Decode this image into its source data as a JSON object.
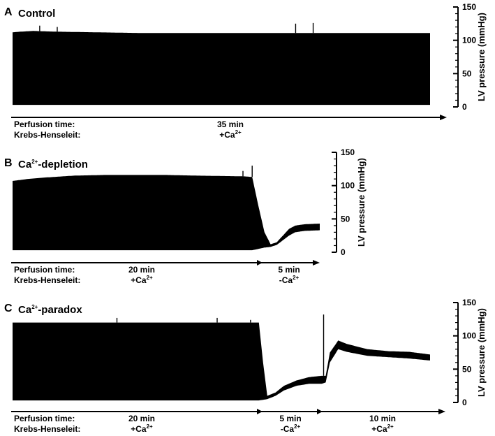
{
  "row_labels": {
    "time": "Perfusion time:",
    "solution": "Krebs-Henseleit:"
  },
  "chart_data": [
    {
      "type": "line",
      "panel": "A",
      "title": "Control",
      "ylabel": "LV pressure (mmHg)",
      "ylim": [
        0,
        150
      ],
      "yticks": [
        "0",
        "50",
        "100",
        "150"
      ],
      "phases": [
        {
          "duration": "35 min",
          "solution": "+Ca",
          "superscript": "2+"
        }
      ],
      "series": [
        {
          "role": "systolic envelope",
          "values": [
            [
              0,
              112
            ],
            [
              0.02,
              113
            ],
            [
              0.05,
              114
            ],
            [
              0.1,
              113
            ],
            [
              0.2,
              112
            ],
            [
              0.3,
              111
            ],
            [
              0.4,
              111
            ],
            [
              0.5,
              111
            ],
            [
              0.6,
              111
            ],
            [
              0.7,
              111
            ],
            [
              0.8,
              111
            ],
            [
              0.9,
              111
            ],
            [
              1.0,
              111
            ]
          ]
        },
        {
          "role": "diastolic baseline",
          "values": [
            [
              0,
              3
            ],
            [
              0.5,
              3
            ],
            [
              1.0,
              3
            ]
          ]
        }
      ]
    },
    {
      "type": "line",
      "panel": "B",
      "title": "Ca",
      "title_superscript": "2+",
      "title_suffix": "-depletion",
      "ylabel": "LV pressure (mmHg)",
      "ylim": [
        0,
        150
      ],
      "yticks": [
        "0",
        "50",
        "100",
        "150"
      ],
      "phases": [
        {
          "duration": "20 min",
          "solution": "+Ca",
          "superscript": "2+"
        },
        {
          "duration": "5 min",
          "solution": "-Ca",
          "superscript": "2+"
        }
      ],
      "series": [
        {
          "role": "systolic envelope",
          "values": [
            [
              0,
              107
            ],
            [
              0.05,
              110
            ],
            [
              0.1,
              112
            ],
            [
              0.2,
              115
            ],
            [
              0.3,
              116
            ],
            [
              0.4,
              116
            ],
            [
              0.5,
              116
            ],
            [
              0.6,
              115
            ],
            [
              0.75,
              114
            ],
            [
              0.78,
              113
            ],
            [
              0.8,
              70
            ],
            [
              0.82,
              30
            ],
            [
              0.84,
              12
            ],
            [
              0.86,
              15
            ],
            [
              0.88,
              25
            ],
            [
              0.9,
              35
            ],
            [
              0.92,
              40
            ],
            [
              0.95,
              42
            ],
            [
              1.0,
              43
            ]
          ]
        },
        {
          "role": "diastolic baseline",
          "values": [
            [
              0,
              3
            ],
            [
              0.78,
              3
            ],
            [
              0.8,
              5
            ],
            [
              0.82,
              7
            ],
            [
              0.84,
              8
            ],
            [
              0.86,
              11
            ],
            [
              0.88,
              18
            ],
            [
              0.9,
              25
            ],
            [
              0.92,
              30
            ],
            [
              0.95,
              32
            ],
            [
              1.0,
              33
            ]
          ]
        }
      ]
    },
    {
      "type": "line",
      "panel": "C",
      "title": "Ca",
      "title_superscript": "2+",
      "title_suffix": "-paradox",
      "ylabel": "LV pressure (mmHg)",
      "ylim": [
        0,
        150
      ],
      "yticks": [
        "0",
        "50",
        "100",
        "150"
      ],
      "phases": [
        {
          "duration": "20 min",
          "solution": "+Ca",
          "superscript": "2+"
        },
        {
          "duration": "5 min",
          "solution": "-Ca",
          "superscript": "2+"
        },
        {
          "duration": "10 min",
          "solution": "+Ca",
          "superscript": "2+"
        }
      ],
      "series": [
        {
          "role": "systolic envelope",
          "values": [
            [
              0,
              120
            ],
            [
              0.1,
              120
            ],
            [
              0.2,
              120
            ],
            [
              0.3,
              120
            ],
            [
              0.4,
              120
            ],
            [
              0.5,
              120
            ],
            [
              0.59,
              120
            ],
            [
              0.6,
              60
            ],
            [
              0.61,
              10
            ],
            [
              0.63,
              15
            ],
            [
              0.65,
              25
            ],
            [
              0.68,
              33
            ],
            [
              0.71,
              38
            ],
            [
              0.74,
              40
            ],
            [
              0.75,
              40
            ],
            [
              0.76,
              75
            ],
            [
              0.78,
              93
            ],
            [
              0.8,
              88
            ],
            [
              0.85,
              80
            ],
            [
              0.9,
              77
            ],
            [
              0.95,
              76
            ],
            [
              1.0,
              72
            ]
          ]
        },
        {
          "role": "diastolic baseline",
          "values": [
            [
              0,
              3
            ],
            [
              0.59,
              3
            ],
            [
              0.6,
              4
            ],
            [
              0.61,
              5
            ],
            [
              0.63,
              10
            ],
            [
              0.65,
              18
            ],
            [
              0.68,
              25
            ],
            [
              0.71,
              28
            ],
            [
              0.74,
              28
            ],
            [
              0.75,
              30
            ],
            [
              0.76,
              60
            ],
            [
              0.78,
              80
            ],
            [
              0.8,
              76
            ],
            [
              0.85,
              70
            ],
            [
              0.9,
              68
            ],
            [
              0.95,
              66
            ],
            [
              1.0,
              63
            ]
          ]
        }
      ]
    }
  ]
}
